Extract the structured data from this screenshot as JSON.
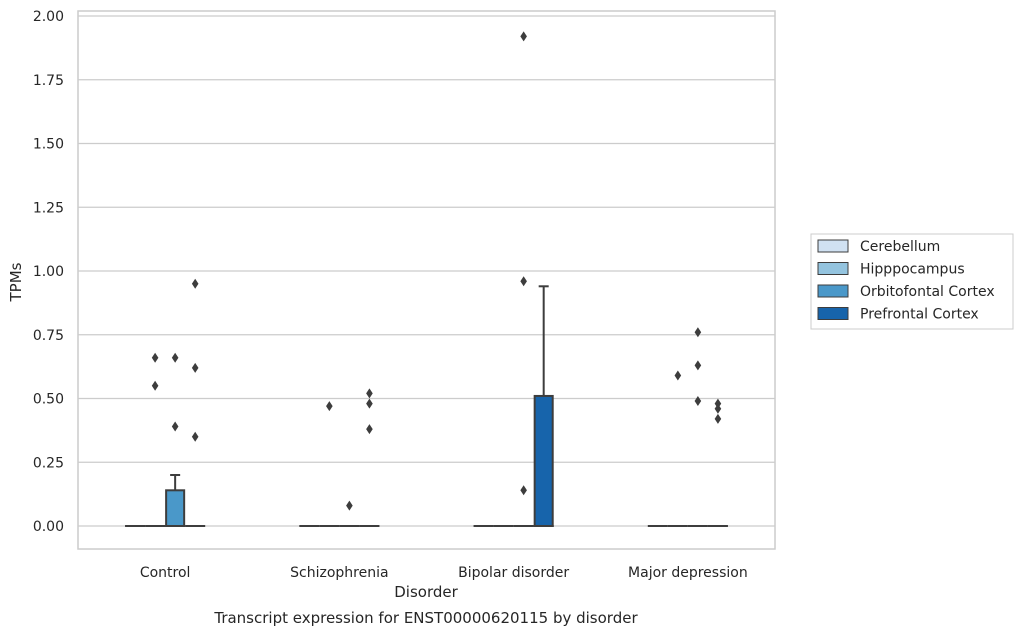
{
  "chart_data": {
    "type": "box",
    "title": "Transcript expression for ENST00000620115 by disorder",
    "xlabel": "Disorder",
    "ylabel": "TPMs",
    "categories": [
      "Control",
      "Schizophrenia",
      "Bipolar disorder",
      "Major depression"
    ],
    "ylim": [
      -0.09,
      2.01
    ],
    "yticks": [
      {
        "value": 0.0,
        "label": "0.00"
      },
      {
        "value": 0.25,
        "label": "0.25"
      },
      {
        "value": 0.5,
        "label": "0.50"
      },
      {
        "value": 0.75,
        "label": "0.75"
      },
      {
        "value": 1.0,
        "label": "1.00"
      },
      {
        "value": 1.25,
        "label": "1.25"
      },
      {
        "value": 1.5,
        "label": "1.50"
      },
      {
        "value": 1.75,
        "label": "1.75"
      },
      {
        "value": 2.0,
        "label": "2.00"
      }
    ],
    "grid": "horizontal",
    "legend_position": "right",
    "series": [
      {
        "name": "Cerebellum",
        "color": "#d0e1f2",
        "boxes": [
          {
            "q1": 0,
            "median": 0,
            "q3": 0,
            "whisker_low": 0,
            "whisker_high": 0,
            "outliers": []
          },
          {
            "q1": 0,
            "median": 0,
            "q3": 0,
            "whisker_low": 0,
            "whisker_high": 0,
            "outliers": []
          },
          {
            "q1": 0,
            "median": 0,
            "q3": 0,
            "whisker_low": 0,
            "whisker_high": 0,
            "outliers": []
          },
          {
            "q1": 0,
            "median": 0,
            "q3": 0,
            "whisker_low": 0,
            "whisker_high": 0,
            "outliers": []
          }
        ]
      },
      {
        "name": "Hipppocampus",
        "color": "#94c4df",
        "boxes": [
          {
            "q1": 0,
            "median": 0,
            "q3": 0,
            "whisker_low": 0,
            "whisker_high": 0,
            "outliers": [
              0.55,
              0.66
            ]
          },
          {
            "q1": 0,
            "median": 0,
            "q3": 0,
            "whisker_low": 0,
            "whisker_high": 0,
            "outliers": [
              0.47
            ]
          },
          {
            "q1": 0,
            "median": 0,
            "q3": 0,
            "whisker_low": 0,
            "whisker_high": 0,
            "outliers": []
          },
          {
            "q1": 0,
            "median": 0,
            "q3": 0,
            "whisker_low": 0,
            "whisker_high": 0,
            "outliers": [
              0.59
            ]
          }
        ]
      },
      {
        "name": "Orbitofontal Cortex",
        "color": "#4a98c9",
        "boxes": [
          {
            "q1": 0,
            "median": 0,
            "q3": 0.14,
            "whisker_low": 0,
            "whisker_high": 0.2,
            "outliers": [
              0.39,
              0.66
            ]
          },
          {
            "q1": 0,
            "median": 0,
            "q3": 0,
            "whisker_low": 0,
            "whisker_high": 0,
            "outliers": [
              0.08
            ]
          },
          {
            "q1": 0,
            "median": 0,
            "q3": 0,
            "whisker_low": 0,
            "whisker_high": 0,
            "outliers": [
              0.96,
              0.14,
              1.92
            ]
          },
          {
            "q1": 0,
            "median": 0,
            "q3": 0,
            "whisker_low": 0,
            "whisker_high": 0,
            "outliers": [
              0.49
            ]
          }
        ]
      },
      {
        "name": "Prefrontal Cortex",
        "color": "#1764ab",
        "boxes": [
          {
            "q1": 0,
            "median": 0,
            "q3": 0,
            "whisker_low": 0,
            "whisker_high": 0,
            "outliers": [
              0.35,
              0.62,
              0.95
            ]
          },
          {
            "q1": 0,
            "median": 0,
            "q3": 0,
            "whisker_low": 0,
            "whisker_high": 0,
            "outliers": [
              0.38,
              0.48,
              0.52
            ]
          },
          {
            "q1": 0,
            "median": 0,
            "q3": 0.51,
            "whisker_low": 0,
            "whisker_high": 0.94,
            "outliers": []
          },
          {
            "q1": 0,
            "median": 0,
            "q3": 0,
            "whisker_low": 0,
            "whisker_high": 0,
            "outliers": [
              0.42,
              0.46,
              0.48
            ]
          }
        ]
      }
    ],
    "extra_outliers": [
      {
        "category": 3,
        "series": 2,
        "value": 0.63
      },
      {
        "category": 3,
        "series": 2,
        "value": 0.76
      }
    ]
  }
}
